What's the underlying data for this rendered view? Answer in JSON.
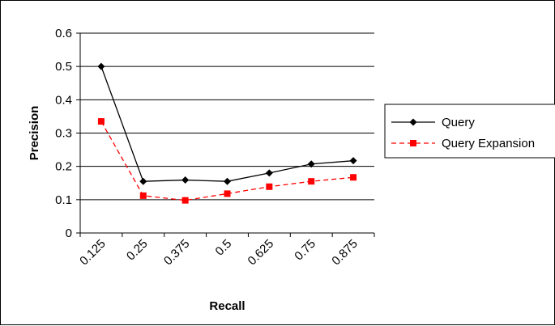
{
  "chart_data": {
    "type": "line",
    "title": "",
    "xlabel": "Recall",
    "ylabel": "Precision",
    "categories": [
      "0.125",
      "0.25",
      "0.375",
      "0.5",
      "0.625",
      "0.75",
      "0.875"
    ],
    "ylim": [
      0,
      0.6
    ],
    "yticks": [
      "0",
      "0.1",
      "0.2",
      "0.3",
      "0.4",
      "0.5",
      "0.6"
    ],
    "grid": "horizontal",
    "legend_position": "right",
    "series": [
      {
        "name": "Query",
        "values": [
          0.5,
          0.155,
          0.159,
          0.155,
          0.18,
          0.207,
          0.217
        ],
        "color": "#000000",
        "marker": "diamond",
        "line": "solid"
      },
      {
        "name": "Query Expansion",
        "values": [
          0.335,
          0.112,
          0.098,
          0.118,
          0.139,
          0.155,
          0.167
        ],
        "color": "#ff0000",
        "marker": "square",
        "line": "dashed"
      }
    ]
  }
}
